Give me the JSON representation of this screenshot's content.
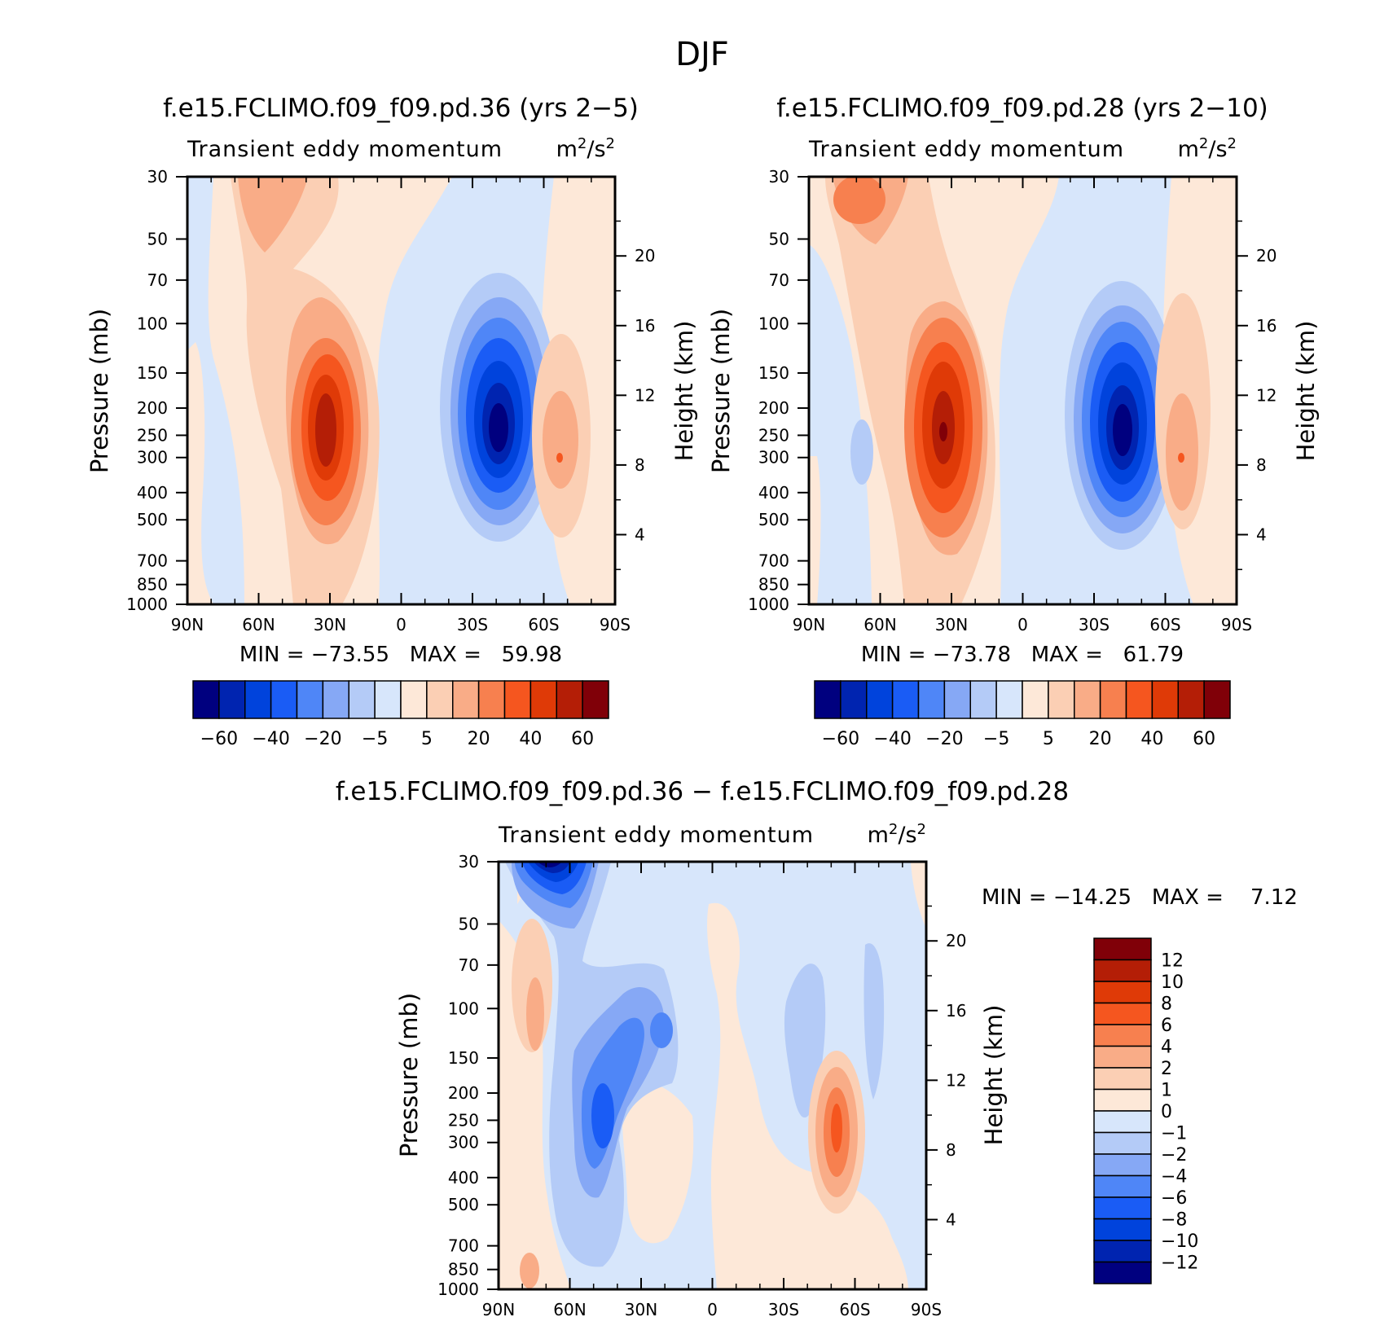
{
  "page": {
    "title": "DJF"
  },
  "palettes": {
    "main": [
      "#00007f",
      "#0024b0",
      "#0043dc",
      "#1a5cf5",
      "#4f86f7",
      "#86a8f5",
      "#b4cbf7",
      "#d7e6fb",
      "#fde8d8",
      "#fbcfb4",
      "#f9ac87",
      "#f7804f",
      "#f5561f",
      "#df3a07",
      "#b41e06",
      "#800008"
    ],
    "diff": [
      "#00007f",
      "#0024b0",
      "#0043dc",
      "#1a5cf5",
      "#4f86f7",
      "#86a8f5",
      "#b4cbf7",
      "#d7e6fb",
      "#fde8d8",
      "#fbcfb4",
      "#f9ac87",
      "#f7804f",
      "#f5561f",
      "#df3a07",
      "#b41e06",
      "#800008"
    ]
  },
  "chart_data": [
    {
      "id": "top-left",
      "type": "contour",
      "title": "f.e15.FCLIMO.f09_f09.pd.36 (yrs 2−5)",
      "subtitle": "Transient eddy momentum",
      "units": "m²/s²",
      "xlabel": "",
      "ylabel": "Pressure (mb)",
      "ylabel_right": "Height (km)",
      "x_ticks": [
        "90N",
        "60N",
        "30N",
        "0",
        "30S",
        "60S",
        "90S"
      ],
      "y_ticks": [
        "30",
        "50",
        "70",
        "100",
        "150",
        "200",
        "250",
        "300",
        "400",
        "500",
        "700",
        "850",
        "1000"
      ],
      "y_ticks_right": [
        "20",
        "16",
        "12",
        "8",
        "4"
      ],
      "stats": "MIN = −73.55   MAX =   59.98",
      "min": -73.55,
      "max": 59.98,
      "levels": [
        -70,
        -60,
        -50,
        -40,
        -30,
        -20,
        -10,
        -5,
        0,
        5,
        10,
        20,
        30,
        40,
        50,
        60
      ],
      "colorbar_labels": [
        "−60",
        "−40",
        "−20",
        "−5",
        "5",
        "20",
        "40",
        "60"
      ],
      "features": [
        {
          "lat": 33,
          "p": 250,
          "value": 59.98
        },
        {
          "lat": -42,
          "p": 250,
          "value": -73.55
        },
        {
          "lat": 72,
          "p": 40,
          "value": 12
        },
        {
          "lat": -67,
          "p": 300,
          "value": 18
        }
      ]
    },
    {
      "id": "top-right",
      "type": "contour",
      "title": "f.e15.FCLIMO.f09_f09.pd.28 (yrs 2−10)",
      "subtitle": "Transient eddy momentum",
      "units": "m²/s²",
      "xlabel": "",
      "ylabel": "Pressure (mb)",
      "ylabel_right": "Height (km)",
      "x_ticks": [
        "90N",
        "60N",
        "30N",
        "0",
        "30S",
        "60S",
        "90S"
      ],
      "y_ticks": [
        "30",
        "50",
        "70",
        "100",
        "150",
        "200",
        "250",
        "300",
        "400",
        "500",
        "700",
        "850",
        "1000"
      ],
      "y_ticks_right": [
        "20",
        "16",
        "12",
        "8",
        "4"
      ],
      "stats": "MIN = −73.78   MAX =   61.79",
      "min": -73.78,
      "max": 61.79,
      "levels": [
        -70,
        -60,
        -50,
        -40,
        -30,
        -20,
        -10,
        -5,
        0,
        5,
        10,
        20,
        30,
        40,
        50,
        60
      ],
      "colorbar_labels": [
        "−60",
        "−40",
        "−20",
        "−5",
        "5",
        "20",
        "40",
        "60"
      ],
      "features": [
        {
          "lat": 33,
          "p": 250,
          "value": 61.79
        },
        {
          "lat": -42,
          "p": 250,
          "value": -73.78
        },
        {
          "lat": 60,
          "p": 35,
          "value": 25
        },
        {
          "lat": -67,
          "p": 300,
          "value": 18
        }
      ]
    },
    {
      "id": "bottom-diff",
      "type": "contour",
      "title": "f.e15.FCLIMO.f09_f09.pd.36 − f.e15.FCLIMO.f09_f09.pd.28",
      "subtitle": "Transient eddy momentum",
      "units": "m²/s²",
      "xlabel": "",
      "ylabel": "Pressure (mb)",
      "ylabel_right": "Height (km)",
      "x_ticks": [
        "90N",
        "60N",
        "30N",
        "0",
        "30S",
        "60S",
        "90S"
      ],
      "y_ticks": [
        "30",
        "50",
        "70",
        "100",
        "150",
        "200",
        "250",
        "300",
        "400",
        "500",
        "700",
        "850",
        "1000"
      ],
      "y_ticks_right": [
        "20",
        "16",
        "12",
        "8",
        "4"
      ],
      "stats": "MIN = −14.25   MAX =    7.12",
      "min": -14.25,
      "max": 7.12,
      "levels": [
        -14,
        -12,
        -10,
        -8,
        -6,
        -4,
        -2,
        -1,
        0,
        1,
        2,
        4,
        6,
        8,
        10,
        12
      ],
      "colorbar_labels": [
        "12",
        "10",
        "8",
        "6",
        "4",
        "2",
        "1",
        "0",
        "−1",
        "−2",
        "−4",
        "−6",
        "−8",
        "−10",
        "−12"
      ],
      "features": [
        {
          "lat": 70,
          "p": 32,
          "value": -14.25
        },
        {
          "lat": 42,
          "p": 300,
          "value": -10
        },
        {
          "lat": 22,
          "p": 160,
          "value": -6
        },
        {
          "lat": -53,
          "p": 280,
          "value": 7.12
        },
        {
          "lat": 77,
          "p": 130,
          "value": 3
        }
      ]
    }
  ]
}
